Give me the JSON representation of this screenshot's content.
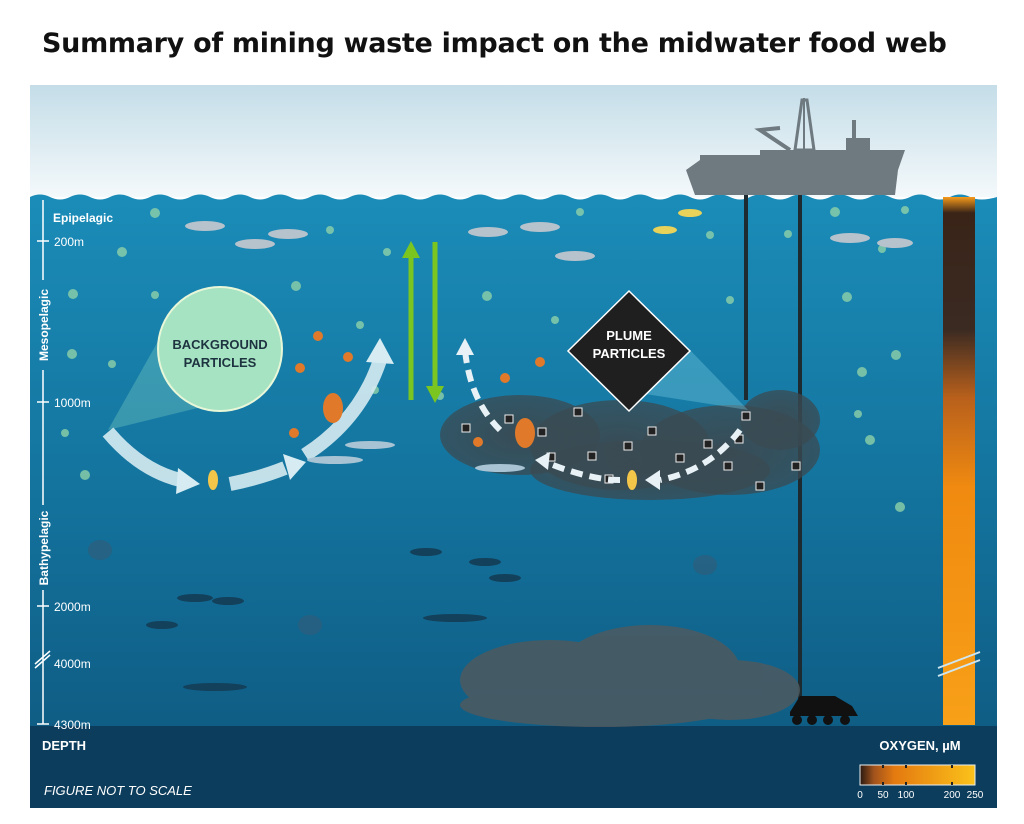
{
  "title": "Summary of mining waste impact on the midwater food web",
  "depth_axis": {
    "zones": [
      "Epipelagic",
      "Mesopelagic",
      "Bathypelagic"
    ],
    "ticks": [
      "200m",
      "1000m",
      "2000m",
      "4000m",
      "4300m"
    ],
    "label": "DEPTH"
  },
  "callouts": {
    "background": [
      "BACKGROUND",
      "PARTICLES"
    ],
    "plume": [
      "PLUME",
      "PARTICLES"
    ]
  },
  "footer_note": "FIGURE NOT TO SCALE",
  "oxygen_scale": {
    "label": "OXYGEN, µM",
    "ticks": [
      "0",
      "50",
      "100",
      "200",
      "250"
    ]
  },
  "colors": {
    "water": "#1a7fa6",
    "seabed": "#0d3d5c",
    "oxygen_high": "#f7a51c",
    "oxygen_low": "#2e1f1a",
    "migration_arrow": "#7ac51f",
    "particle": "#9fd8b0"
  }
}
